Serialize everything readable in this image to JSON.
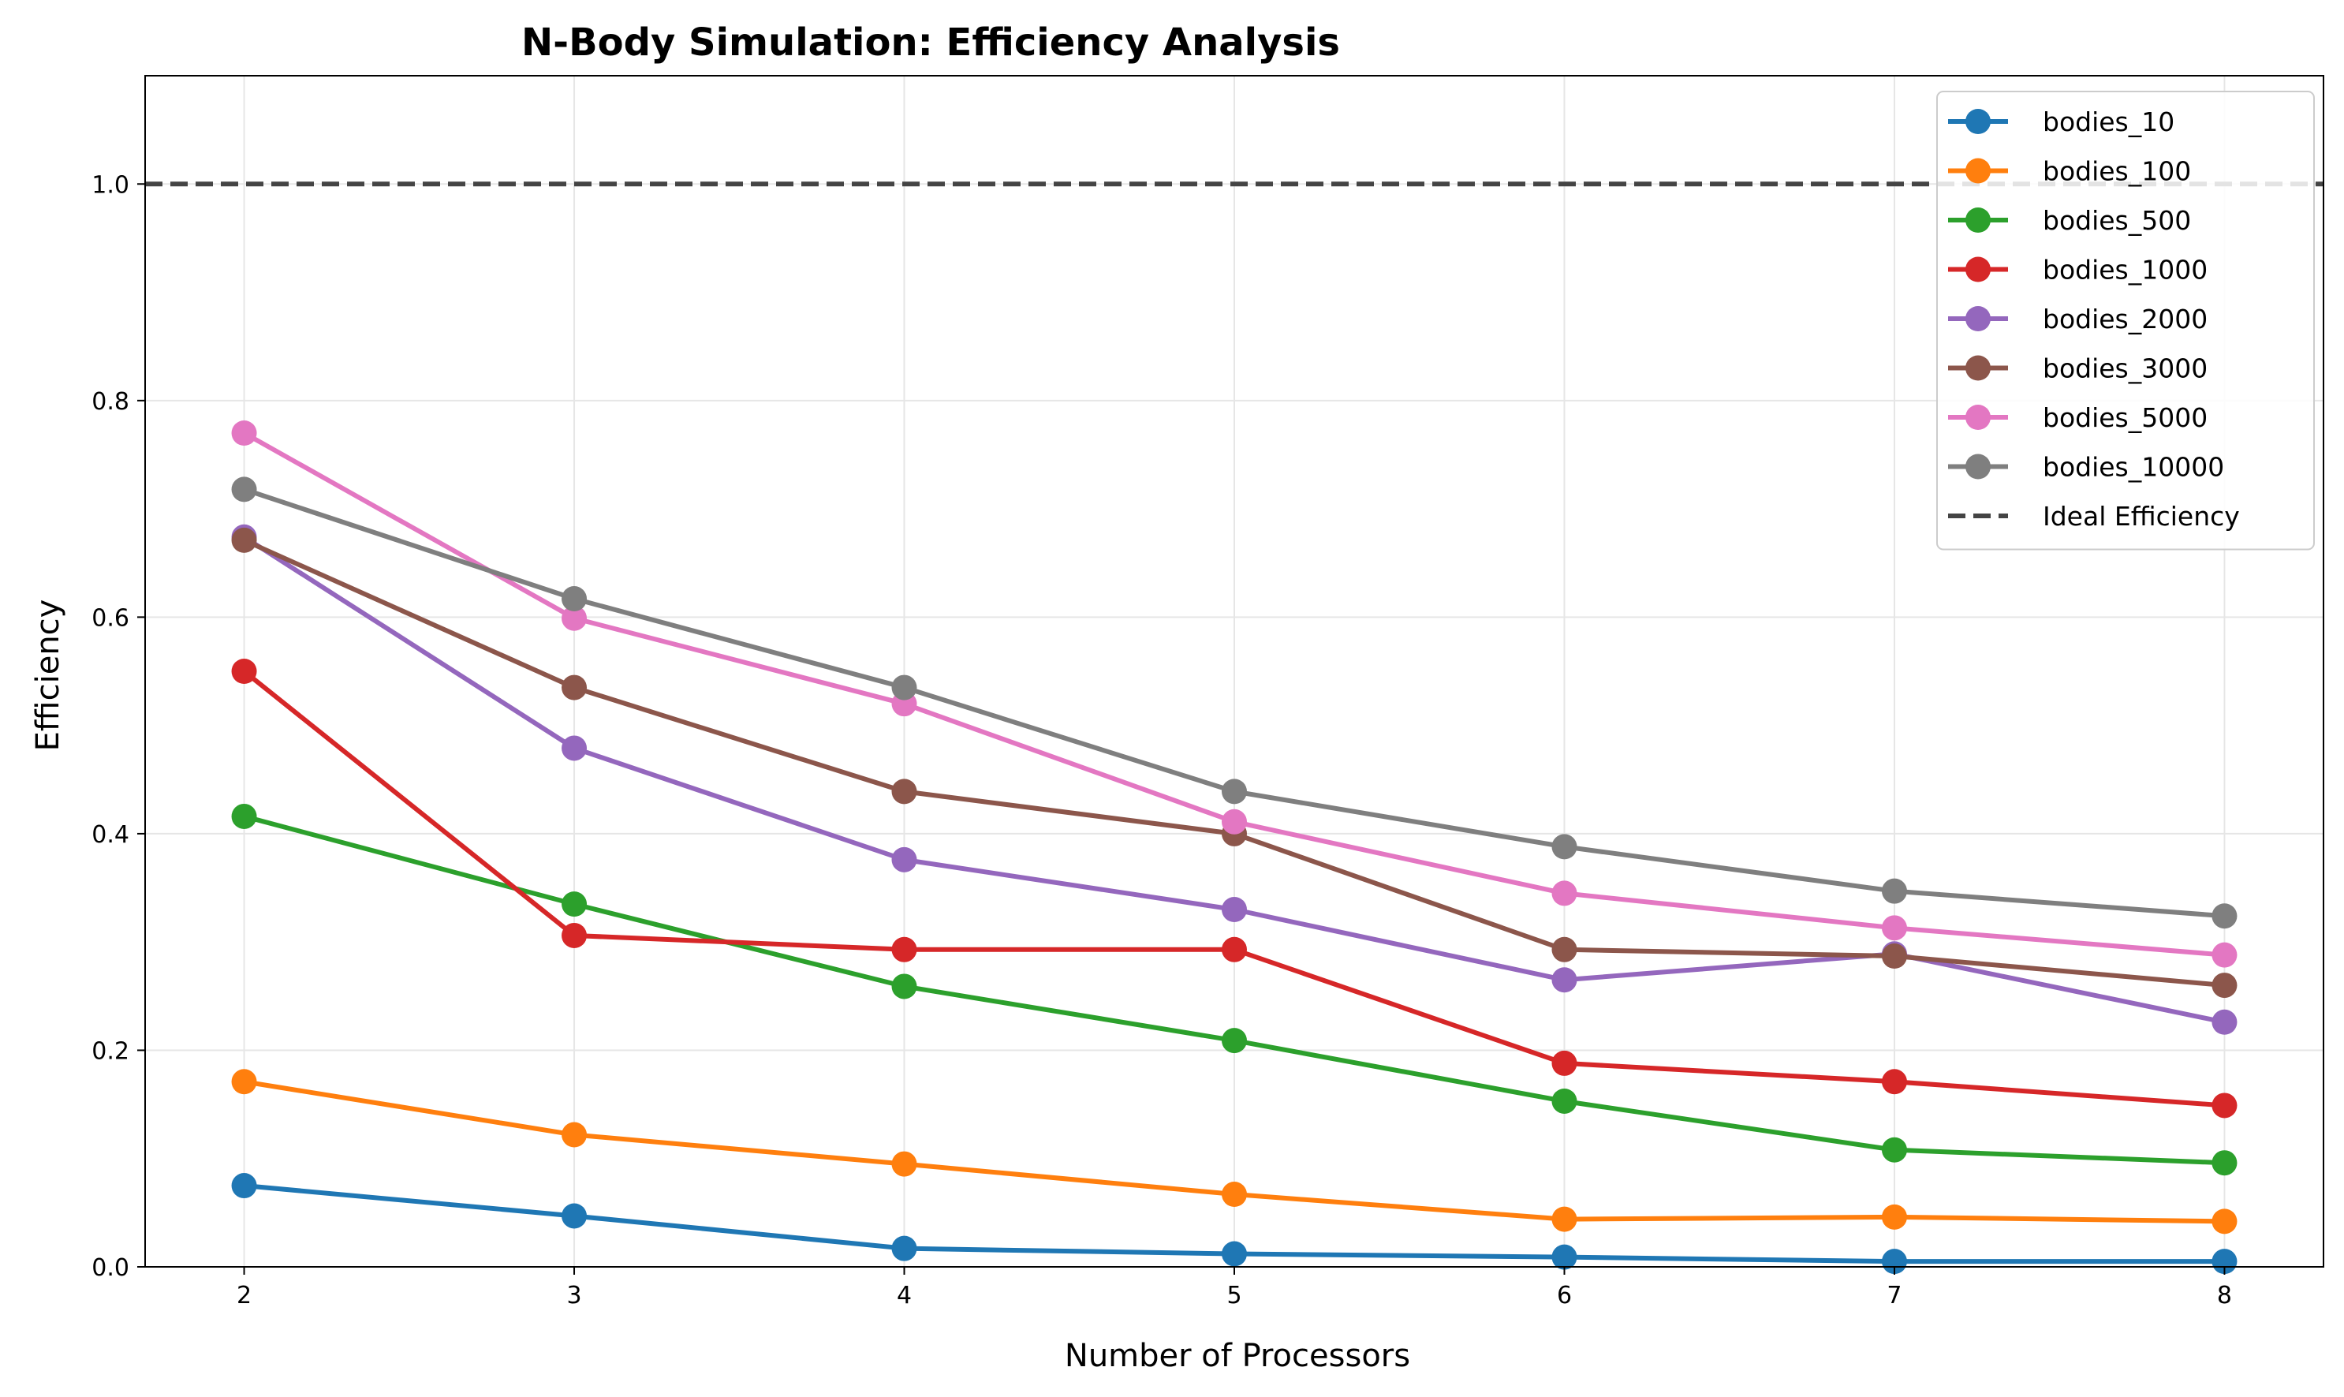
{
  "chart_data": {
    "type": "line",
    "title": "N-Body Simulation: Efficiency Analysis",
    "xlabel": "Number of Processors",
    "ylabel": "Efficiency",
    "x": [
      2,
      3,
      4,
      5,
      6,
      7,
      8
    ],
    "xlim": [
      1.7,
      8.3
    ],
    "ylim": [
      0,
      1.1
    ],
    "xticks": [
      2,
      3,
      4,
      5,
      6,
      7,
      8
    ],
    "yticks": [
      0.0,
      0.2,
      0.4,
      0.6,
      0.8,
      1.0
    ],
    "grid": true,
    "legend_position": "top-right",
    "series": [
      {
        "name": "bodies_10",
        "color": "#1f77b4",
        "values": [
          0.075,
          0.047,
          0.017,
          0.012,
          0.009,
          0.005,
          0.005
        ]
      },
      {
        "name": "bodies_100",
        "color": "#ff7f0e",
        "values": [
          0.171,
          0.122,
          0.095,
          0.067,
          0.044,
          0.046,
          0.042
        ]
      },
      {
        "name": "bodies_500",
        "color": "#2ca02c",
        "values": [
          0.416,
          0.335,
          0.259,
          0.209,
          0.153,
          0.108,
          0.096
        ]
      },
      {
        "name": "bodies_1000",
        "color": "#d62728",
        "values": [
          0.55,
          0.306,
          0.293,
          0.293,
          0.188,
          0.171,
          0.149
        ]
      },
      {
        "name": "bodies_2000",
        "color": "#9467bd",
        "values": [
          0.674,
          0.479,
          0.376,
          0.33,
          0.265,
          0.289,
          0.226
        ]
      },
      {
        "name": "bodies_3000",
        "color": "#8c564b",
        "values": [
          0.671,
          0.535,
          0.439,
          0.4,
          0.293,
          0.287,
          0.26
        ]
      },
      {
        "name": "bodies_5000",
        "color": "#e377c2",
        "values": [
          0.77,
          0.599,
          0.52,
          0.411,
          0.345,
          0.313,
          0.288
        ]
      },
      {
        "name": "bodies_10000",
        "color": "#7f7f7f",
        "values": [
          0.718,
          0.617,
          0.535,
          0.439,
          0.388,
          0.347,
          0.324
        ]
      }
    ],
    "reference_line": {
      "name": "Ideal Efficiency",
      "y": 1.0,
      "color": "#444444",
      "style": "dashed"
    }
  }
}
